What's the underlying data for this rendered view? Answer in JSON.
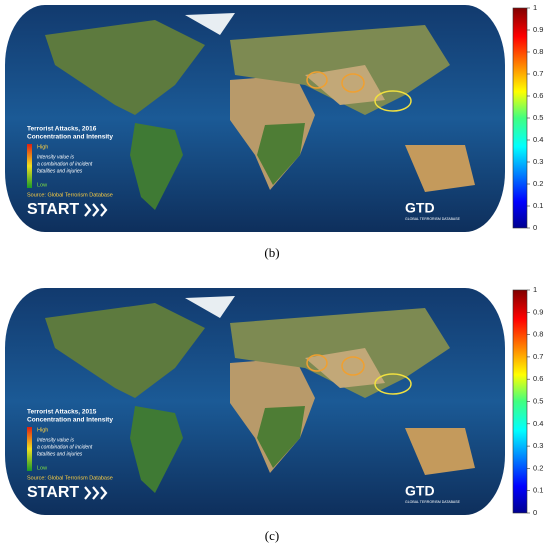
{
  "panels": [
    {
      "label": "(b)",
      "map": {
        "title": "Terrorist Attacks, 2016",
        "subtitle": "Concentration and Intensity",
        "legend_high": "High",
        "legend_note": [
          "Intensity value is",
          "a combination of incident",
          "fatalities and injuries"
        ],
        "legend_low": "Low",
        "source": "Source: Global Terrorism Database",
        "logo_start": "START",
        "logo_gtd": "GTD",
        "logo_gtd_sub": "GLOBAL TERRORISM DATABASE"
      },
      "colorbar": {
        "range": [
          0,
          1
        ],
        "ticks": [
          0,
          0.1,
          0.2,
          0.3,
          0.4,
          0.5,
          0.6,
          0.7,
          0.8,
          0.9,
          1
        ]
      }
    },
    {
      "label": "(c)",
      "map": {
        "title": "Terrorist Attacks, 2015",
        "subtitle": "Concentration and Intensity",
        "legend_high": "High",
        "legend_note": [
          "Intensity value is",
          "a combination of incident",
          "fatalities and injuries"
        ],
        "legend_low": "Low",
        "source": "Source: Global Terrorism Database",
        "logo_start": "START",
        "logo_gtd": "GTD",
        "logo_gtd_sub": "GLOBAL TERRORISM DATABASE"
      },
      "colorbar": {
        "range": [
          0,
          1
        ],
        "ticks": [
          0,
          0.1,
          0.2,
          0.3,
          0.4,
          0.5,
          0.6,
          0.7,
          0.8,
          0.9,
          1
        ]
      }
    }
  ]
}
